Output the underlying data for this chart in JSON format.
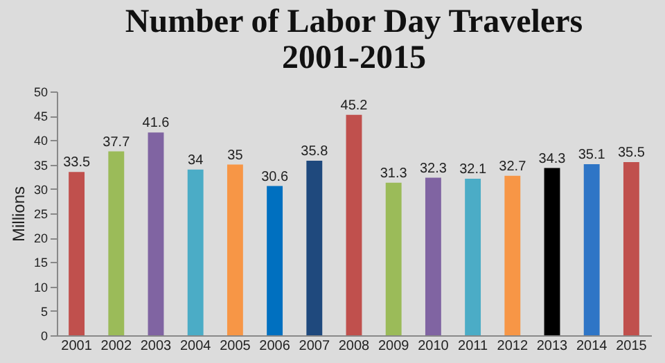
{
  "chart_data": {
    "type": "bar",
    "title": "Number of Labor Day Travelers\n2001-2015",
    "ylabel": "Millions",
    "categories": [
      "2001",
      "2002",
      "2003",
      "2004",
      "2005",
      "2006",
      "2007",
      "2008",
      "2009",
      "2010",
      "2011",
      "2012",
      "2013",
      "2014",
      "2015"
    ],
    "values": [
      33.5,
      37.7,
      41.6,
      34,
      35,
      30.6,
      35.8,
      45.2,
      31.3,
      32.3,
      32.1,
      32.7,
      34.3,
      35.1,
      35.5
    ],
    "colors": [
      "#c0504d",
      "#9bbb59",
      "#8064a2",
      "#4bacc6",
      "#f79646",
      "#0070c0",
      "#1f497d",
      "#c0504d",
      "#9bbb59",
      "#8064a2",
      "#4bacc6",
      "#f79646",
      "#000000",
      "#2e75c6",
      "#c0504d"
    ],
    "ylim": [
      0,
      50
    ],
    "yticks": [
      0,
      5,
      10,
      15,
      20,
      25,
      30,
      35,
      40,
      45,
      50
    ],
    "data_labels": true
  }
}
